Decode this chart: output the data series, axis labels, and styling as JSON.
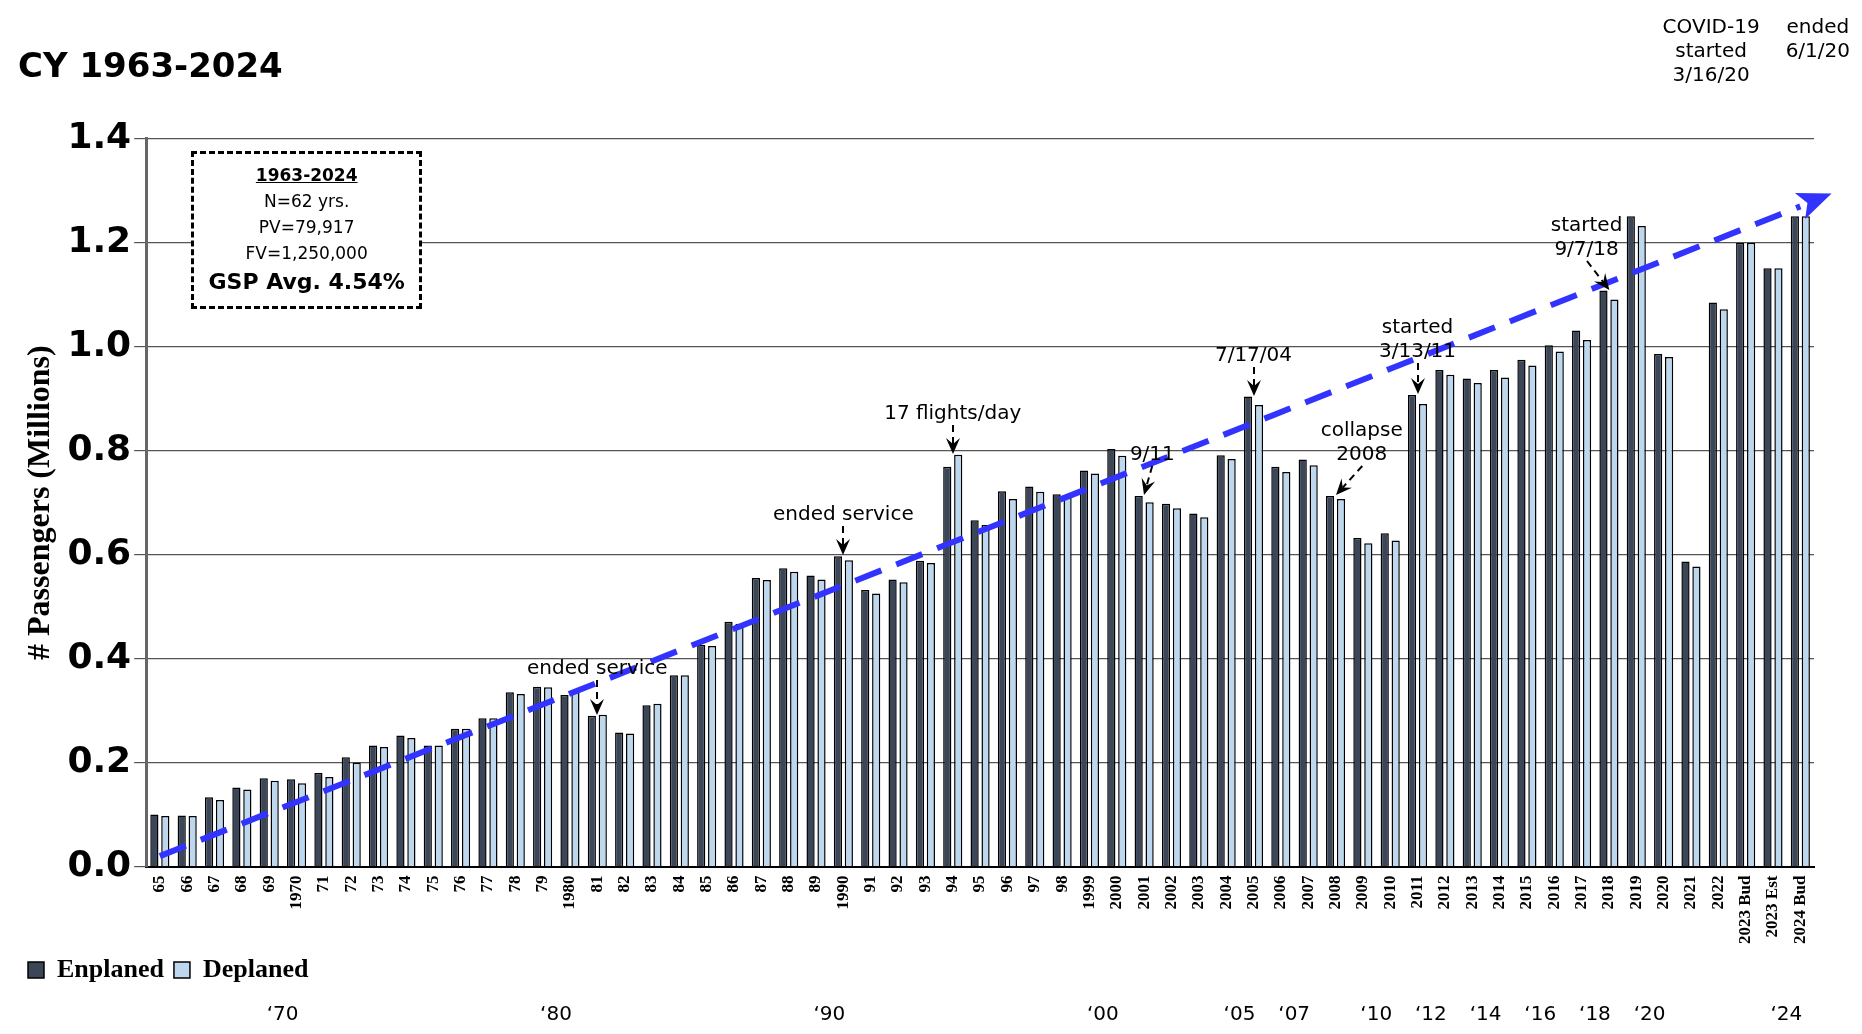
{
  "chart_data": {
    "type": "bar",
    "title": "CY 1963-2024",
    "ylabel": "# Passengers (Millions)",
    "categories": [
      "65",
      "66",
      "67",
      "68",
      "69",
      "1970",
      "71",
      "72",
      "73",
      "74",
      "75",
      "76",
      "77",
      "78",
      "79",
      "1980",
      "81",
      "82",
      "83",
      "84",
      "85",
      "86",
      "87",
      "88",
      "89",
      "1990",
      "91",
      "92",
      "93",
      "94",
      "95",
      "96",
      "97",
      "98",
      "1999",
      "2000",
      "2001",
      "2002",
      "2003",
      "2004",
      "2005",
      "2006",
      "2007",
      "2008",
      "2009",
      "2010",
      "2011",
      "2012",
      "2013",
      "2014",
      "2015",
      "2016",
      "2017",
      "2018",
      "2019",
      "2020",
      "2021",
      "2022",
      "2023 Bud",
      "2023 Est",
      "2024 Bud"
    ],
    "series": [
      {
        "name": "Enplaned",
        "color": "#3b4658",
        "values": [
          0.1,
          0.098,
          0.133,
          0.152,
          0.17,
          0.168,
          0.18,
          0.21,
          0.233,
          0.252,
          0.233,
          0.265,
          0.285,
          0.335,
          0.346,
          0.33,
          0.29,
          0.258,
          0.31,
          0.368,
          0.426,
          0.471,
          0.555,
          0.574,
          0.56,
          0.597,
          0.532,
          0.552,
          0.588,
          0.769,
          0.666,
          0.722,
          0.731,
          0.716,
          0.762,
          0.803,
          0.713,
          0.698,
          0.679,
          0.791,
          0.904,
          0.769,
          0.783,
          0.713,
          0.632,
          0.641,
          0.907,
          0.955,
          0.939,
          0.955,
          0.975,
          1.003,
          1.031,
          1.108,
          1.251,
          0.986,
          0.587,
          1.085,
          1.2,
          1.151,
          1.251
        ]
      },
      {
        "name": "Deplaned",
        "color": "#bdd7ee",
        "values": [
          0.097,
          0.097,
          0.128,
          0.148,
          0.165,
          0.16,
          0.172,
          0.2,
          0.23,
          0.247,
          0.233,
          0.265,
          0.285,
          0.332,
          0.345,
          0.336,
          0.292,
          0.256,
          0.313,
          0.368,
          0.424,
          0.467,
          0.551,
          0.567,
          0.552,
          0.589,
          0.525,
          0.547,
          0.584,
          0.792,
          0.657,
          0.707,
          0.721,
          0.711,
          0.756,
          0.79,
          0.701,
          0.689,
          0.672,
          0.784,
          0.888,
          0.759,
          0.772,
          0.707,
          0.622,
          0.627,
          0.89,
          0.946,
          0.93,
          0.941,
          0.964,
          0.991,
          1.013,
          1.091,
          1.232,
          0.98,
          0.577,
          1.072,
          1.2,
          1.151,
          1.251
        ]
      },
      {
        "type": "line",
        "color": "#3333ff",
        "line_style": "dashed",
        "values": [
          0.02,
          null,
          null,
          null,
          null,
          null,
          null,
          null,
          null,
          null,
          null,
          null,
          null,
          null,
          null,
          null,
          null,
          null,
          null,
          null,
          null,
          null,
          null,
          null,
          null,
          null,
          null,
          null,
          null,
          null,
          null,
          null,
          null,
          null,
          null,
          null,
          null,
          null,
          null,
          null,
          null,
          null,
          null,
          null,
          null,
          null,
          null,
          null,
          null,
          null,
          null,
          null,
          null,
          null,
          null,
          null,
          null,
          null,
          null,
          null,
          1.27
        ]
      }
    ],
    "ylim": [
      0,
      1.4
    ],
    "yticks": [
      {
        "value": 0,
        "label": "0.0"
      },
      {
        "value": 0.2,
        "label": "0.2"
      },
      {
        "value": 0.4,
        "label": "0.4"
      },
      {
        "value": 0.6,
        "label": "0.6"
      },
      {
        "value": 0.8,
        "label": "0.8"
      },
      {
        "value": 1.0,
        "label": "1.0"
      },
      {
        "value": 1.2,
        "label": "1.2"
      },
      {
        "value": 1.4,
        "label": "1.4"
      }
    ],
    "grid": "y",
    "legend": "bottom left",
    "annotations": [
      "1963-2024",
      "N=62 yrs.",
      "PV=79,917",
      "FV=1,250,000",
      "GSP Avg. 4.54%",
      {
        "text": "ended service",
        "x": "81",
        "y": 0.29
      },
      {
        "text": "ended service",
        "x": "1990",
        "y": 0.597
      },
      {
        "text": "17 flights/day",
        "x": "94",
        "y": 0.792
      },
      {
        "text": "9/11",
        "x": "2001",
        "y": 0.713
      },
      {
        "text": "7/17/04",
        "x": "2005",
        "y": 0.904
      },
      {
        "text": "collapse\n2008",
        "x": "2008",
        "y": 0.713
      },
      {
        "text": "started\n3/13/11",
        "x": "2011",
        "y": 0.907
      },
      {
        "text": "started\n9/7/18",
        "x": "2018",
        "y": 1.108
      },
      "COVID-19\nstarted\n3/16/20",
      "ended\n6/1/20",
      "‘70",
      "‘80",
      "‘90",
      "‘00",
      "‘05",
      "‘07",
      "‘10",
      "‘12",
      "‘14",
      "‘16",
      "‘18",
      "‘20",
      "‘24"
    ]
  }
}
